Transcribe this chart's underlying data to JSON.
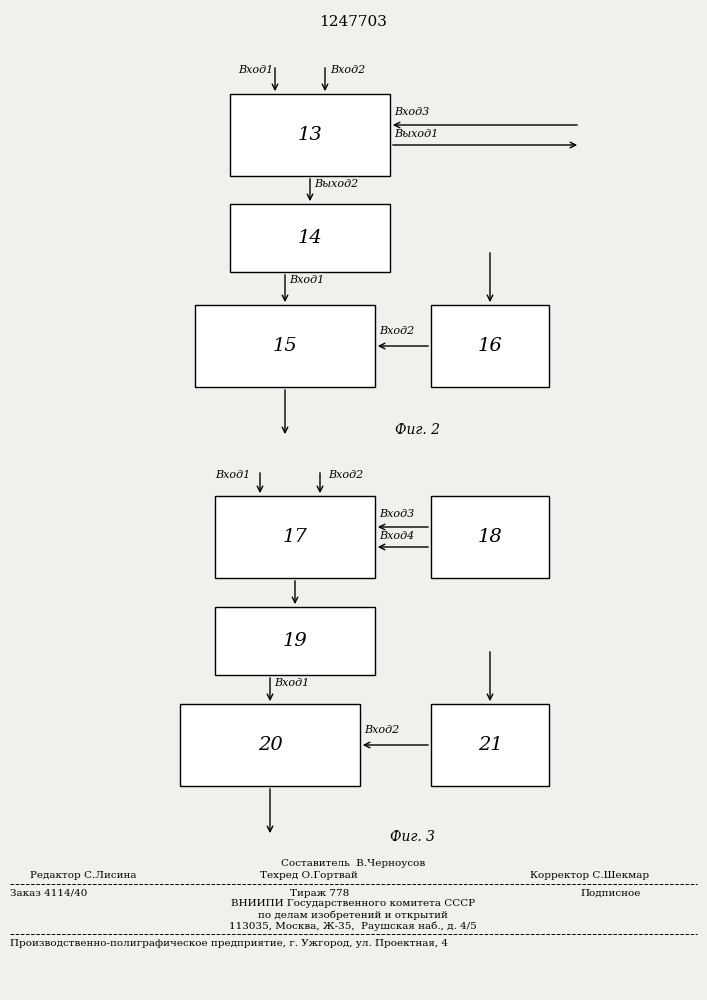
{
  "title": "1247703",
  "fig2_label": "Фиг. 2",
  "fig3_label": "Фиг. 3",
  "bg": "#f0f0ec",
  "footer": {
    "sestavitel": "Составитель  В.Черноусов",
    "redaktor": "Редактор С.Лисина",
    "tehred": "Техред О.Гортвай",
    "korrektor": "Корректор С.Шекмар",
    "zakaz": "Заказ 4114/40",
    "tirazh": "Тираж 778",
    "podpisnoe": "Подписное",
    "vniiipi": "ВНИИПИ Государственного комитета СССР",
    "po_delam": "по делам изобретений и открытий",
    "adres": "113035, Москва, Ж-35,  Раушская наб., д. 4/5",
    "predpriyatie": "Производственно-полиграфическое предприятие, г. Ужгород, ул. Проектная, 4"
  }
}
